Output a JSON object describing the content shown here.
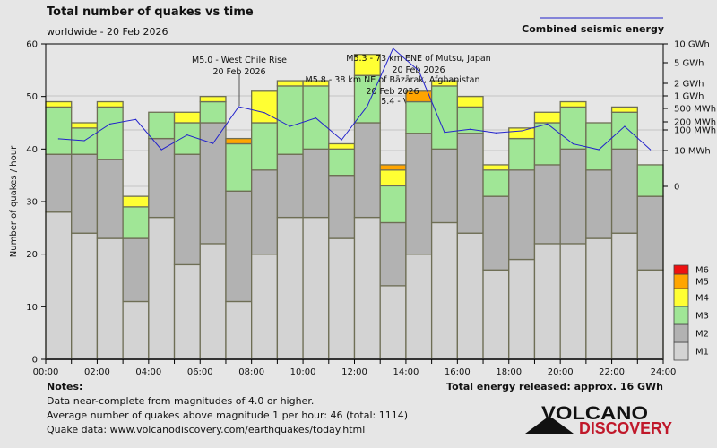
{
  "header": {
    "title": "Total number of quakes vs time",
    "subtitle": "worldwide - 20 Feb 2026"
  },
  "energy_legend": {
    "label": "Combined seismic energy",
    "color": "#2222cc"
  },
  "notes": {
    "heading": "Notes:",
    "lines": [
      "Data near-complete from magnitudes of 4.0 or higher.",
      "Average number of quakes above magnitude 1 per hour: 46 (total: 1114)",
      "Quake data: www.volcanodiscovery.com/earthquakes/today.html"
    ],
    "total_energy": "Total energy released: approx. 16 GWh"
  },
  "logo": {
    "line1": "VOLCANO",
    "line2": "DISCOVERY"
  },
  "chart_data": {
    "type": "bar",
    "stacked": true,
    "ylabel": "Number of quakes / hour",
    "ylim": [
      0,
      60
    ],
    "yticks": [
      "0",
      "10",
      "20",
      "30",
      "40",
      "50",
      "60"
    ],
    "xticks": [
      "00:00",
      "02:00",
      "04:00",
      "06:00",
      "08:00",
      "10:00",
      "12:00",
      "14:00",
      "16:00",
      "18:00",
      "20:00",
      "22:00",
      "24:00"
    ],
    "categories_hours": [
      0,
      1,
      2,
      3,
      4,
      5,
      6,
      7,
      8,
      9,
      10,
      11,
      12,
      13,
      14,
      15,
      16,
      17,
      18,
      19,
      20,
      21,
      22,
      23
    ],
    "series": [
      {
        "name": "M1",
        "color": "#d3d3d3",
        "values": [
          28,
          24,
          23,
          11,
          27,
          18,
          22,
          11,
          20,
          27,
          27,
          23,
          27,
          14,
          20,
          26,
          24,
          17,
          19,
          22,
          22,
          23,
          24,
          17
        ]
      },
      {
        "name": "M2",
        "color": "#b2b2b2",
        "values": [
          11,
          15,
          15,
          12,
          15,
          21,
          23,
          21,
          16,
          12,
          13,
          12,
          18,
          12,
          23,
          14,
          19,
          14,
          17,
          15,
          18,
          13,
          16,
          14
        ]
      },
      {
        "name": "M3",
        "color": "#a0e696",
        "values": [
          9,
          5,
          10,
          6,
          5,
          6,
          4,
          9,
          9,
          13,
          12,
          5,
          9,
          7,
          6,
          12,
          5,
          5,
          6,
          8,
          8,
          9,
          7,
          6
        ]
      },
      {
        "name": "M4",
        "color": "#ffff33",
        "values": [
          1,
          1,
          1,
          2,
          0,
          2,
          1,
          0,
          6,
          1,
          1,
          1,
          4,
          3,
          0,
          1,
          2,
          1,
          2,
          2,
          1,
          0,
          1,
          0
        ]
      },
      {
        "name": "M5",
        "color": "#ffa500",
        "values": [
          0,
          0,
          0,
          0,
          0,
          0,
          0,
          1,
          0,
          0,
          0,
          0,
          0,
          1,
          2,
          0,
          0,
          0,
          0,
          0,
          0,
          0,
          0,
          0
        ]
      },
      {
        "name": "M6",
        "color": "#ee1111",
        "values": [
          0,
          0,
          0,
          0,
          0,
          0,
          0,
          0,
          0,
          0,
          0,
          0,
          0,
          0,
          0,
          0,
          0,
          0,
          0,
          0,
          0,
          0,
          0,
          0
        ]
      }
    ],
    "energy_axis": {
      "scale": "log",
      "ticks": [
        "10 GWh",
        "5 GWh",
        "2 GWh",
        "1 GWh",
        "500 MWh",
        "200 MWh",
        "100 MWh",
        "10 MWh",
        "0"
      ]
    },
    "energy_mwh": [
      37,
      30,
      167,
      236,
      11,
      57,
      22,
      552,
      375,
      136,
      260,
      33,
      571,
      8470,
      3490,
      76,
      106,
      72,
      90,
      167,
      21,
      11,
      136,
      11
    ],
    "annotations": [
      {
        "lines": [
          "M5.0 - West Chile Rise",
          "20 Feb 2026"
        ],
        "hour": 7.5
      },
      {
        "lines": [
          "M5.3 - 73 km ENE of Mutsu, Japan",
          "20 Feb 2026"
        ],
        "hour": 13.5
      },
      {
        "lines": [
          "M5.8 - 38 km NE of Bāzārak, Afghanistan",
          "20 Feb 2026"
        ],
        "hour": 14.5
      },
      {
        "lines": [
          "M5.4 - Vanuatu",
          "20 Feb 20"
        ],
        "hour": 14.5
      }
    ]
  }
}
